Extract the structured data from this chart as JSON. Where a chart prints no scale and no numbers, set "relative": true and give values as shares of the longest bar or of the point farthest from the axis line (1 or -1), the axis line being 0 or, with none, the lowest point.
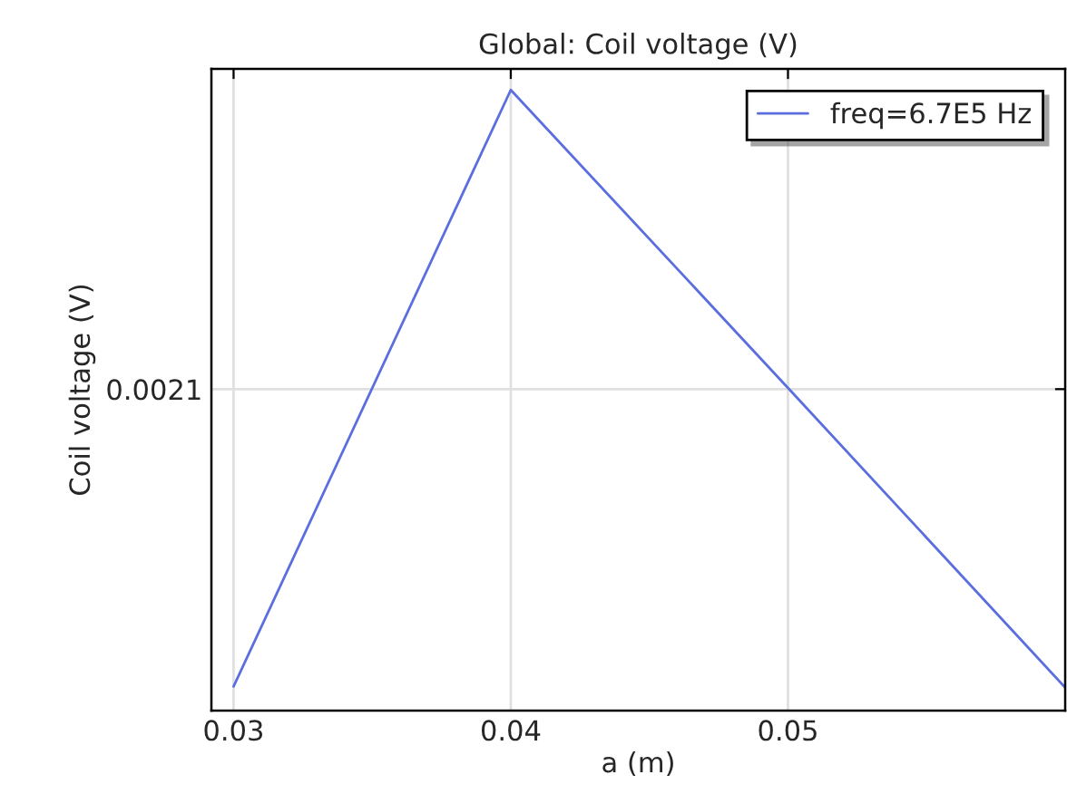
{
  "chart_data": {
    "type": "line",
    "title": "Global: Coil voltage (V)",
    "xlabel": "a (m)",
    "ylabel": "Coil voltage (V)",
    "relative": true,
    "x": [
      0.03,
      0.04,
      0.05,
      0.06
    ],
    "series": [
      {
        "name": "freq=6.7E5 Hz",
        "color": "#5b6ee0",
        "values": [
          0.039,
          1,
          0.52,
          0.037
        ]
      }
    ],
    "xlim": [
      0.0292,
      0.06
    ],
    "xticks": [
      0.03,
      0.04,
      0.05
    ],
    "ref_lines": [
      {
        "axis": "y",
        "value": 0.518,
        "color": "#e0e0e0"
      }
    ],
    "annotations": [
      "0.0021"
    ],
    "grid": "x",
    "legend": "top right",
    "marker": "none",
    "line_style": "solid"
  }
}
